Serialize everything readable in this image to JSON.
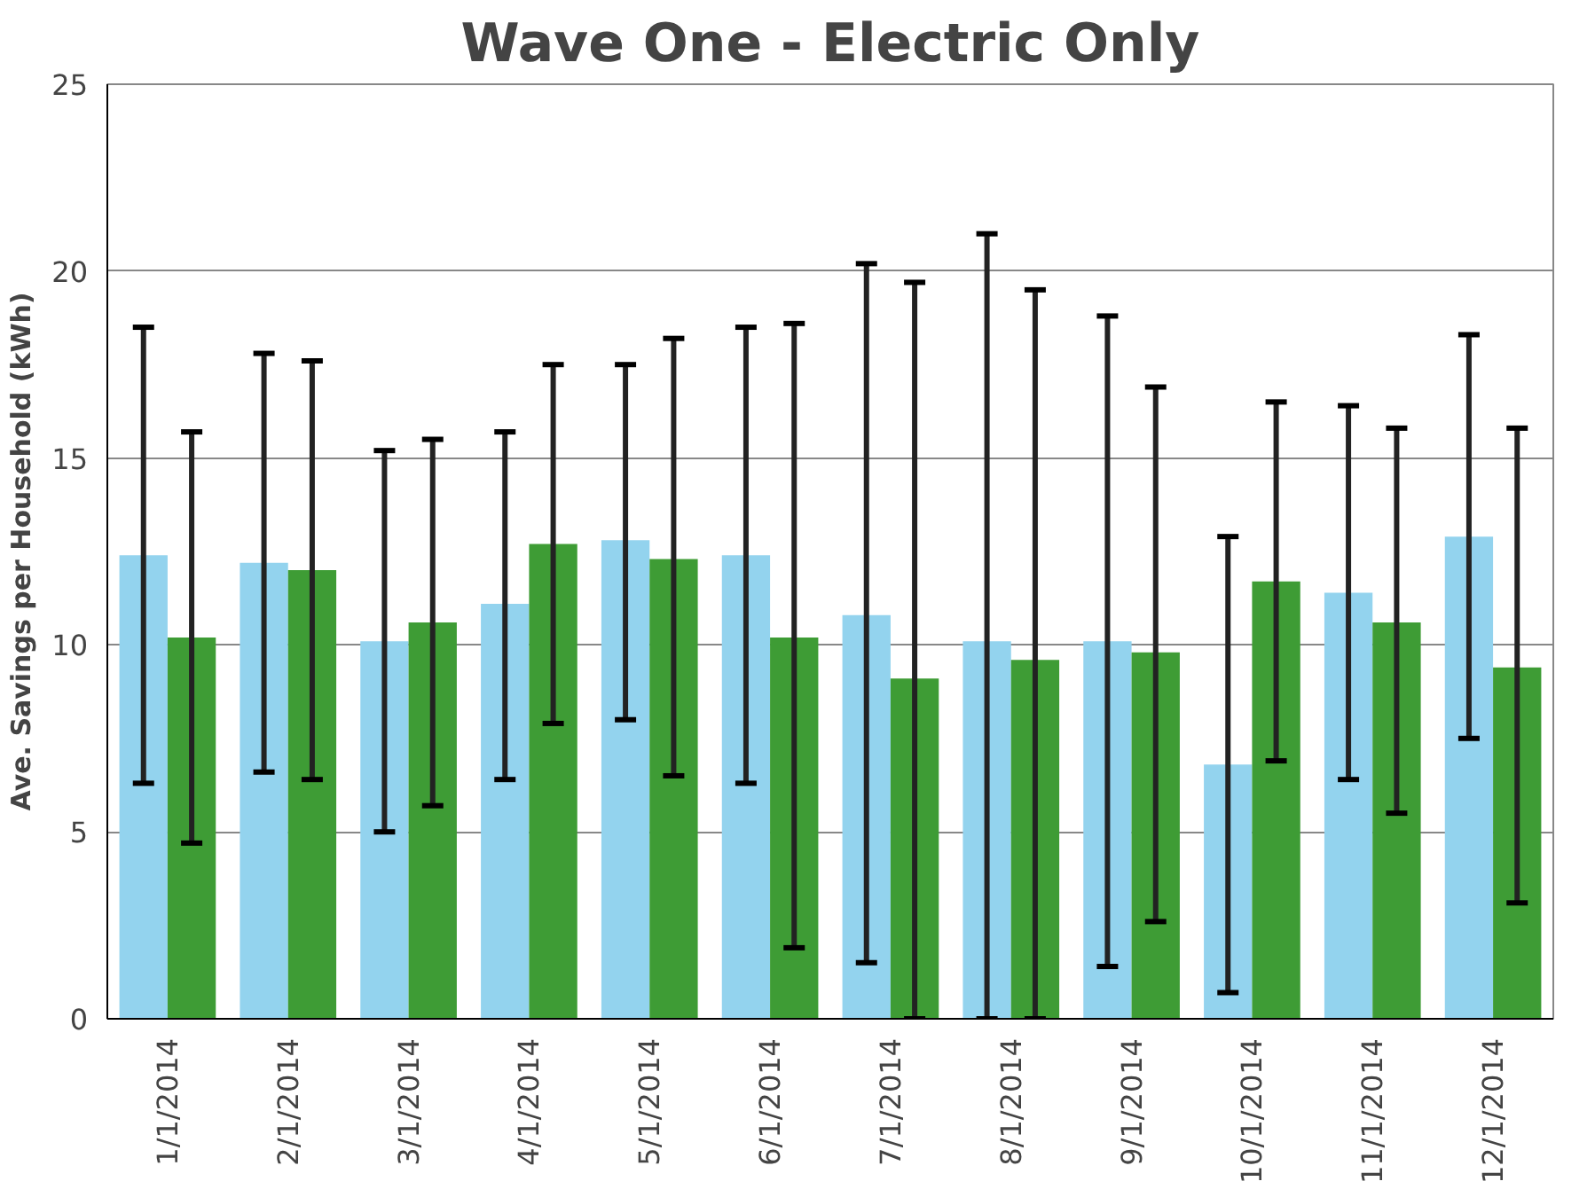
{
  "chart_data": {
    "type": "bar",
    "title": "Wave One - Electric Only",
    "ylabel": "Ave. Savings per Household (kWh)",
    "categories": [
      "1/1/2014",
      "2/1/2014",
      "3/1/2014",
      "4/1/2014",
      "5/1/2014",
      "6/1/2014",
      "7/1/2014",
      "8/1/2014",
      "9/1/2014",
      "10/1/2014",
      "11/1/2014",
      "12/1/2014"
    ],
    "series": [
      {
        "color": "#93d3ee",
        "values": [
          12.4,
          12.2,
          10.1,
          11.1,
          12.8,
          12.4,
          10.8,
          10.1,
          10.1,
          6.8,
          11.4,
          12.9
        ],
        "errors": [
          [
            6.3,
            18.5
          ],
          [
            6.6,
            17.8
          ],
          [
            5.0,
            15.2
          ],
          [
            6.4,
            15.7
          ],
          [
            8.0,
            17.5
          ],
          [
            6.3,
            18.5
          ],
          [
            1.5,
            20.2
          ],
          [
            0,
            21.0
          ],
          [
            1.4,
            18.8
          ],
          [
            0.7,
            12.9
          ],
          [
            6.4,
            16.4
          ],
          [
            7.5,
            18.3
          ]
        ]
      },
      {
        "color": "#3e9c35",
        "values": [
          10.2,
          12.0,
          10.6,
          12.7,
          12.3,
          10.2,
          9.1,
          9.6,
          9.8,
          11.7,
          10.6,
          9.4
        ],
        "errors": [
          [
            4.7,
            15.7
          ],
          [
            6.4,
            17.6
          ],
          [
            5.7,
            15.5
          ],
          [
            7.9,
            17.5
          ],
          [
            6.5,
            18.2
          ],
          [
            1.9,
            18.6
          ],
          [
            0,
            19.7
          ],
          [
            0,
            19.5
          ],
          [
            2.6,
            16.9
          ],
          [
            6.9,
            16.5
          ],
          [
            5.5,
            15.8
          ],
          [
            3.1,
            15.8
          ]
        ]
      }
    ],
    "ylim": [
      0,
      25
    ],
    "yticks": [
      0,
      5,
      10,
      15,
      20,
      25
    ],
    "grid": "y"
  }
}
